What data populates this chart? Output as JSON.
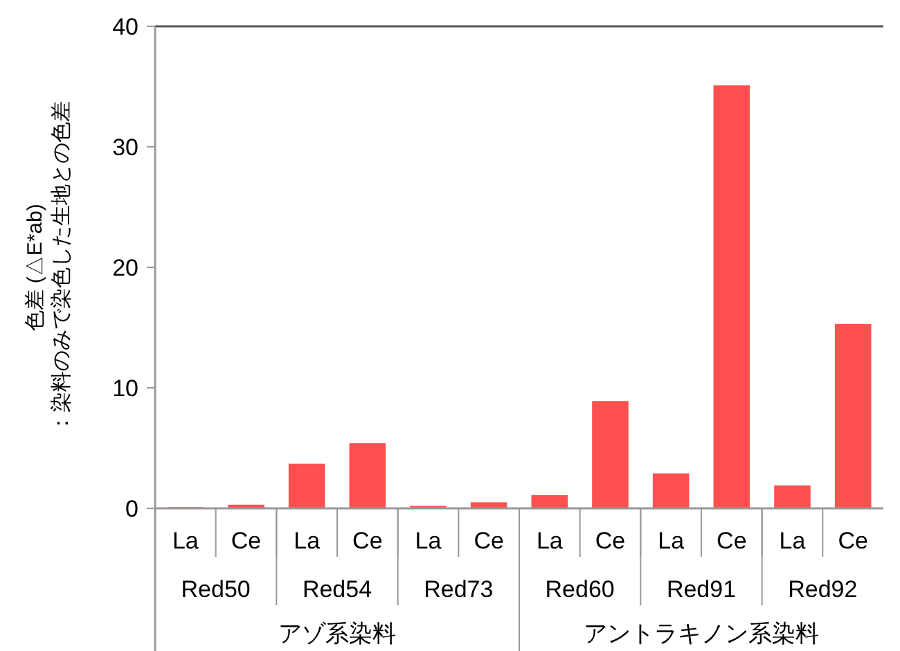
{
  "chart_data": {
    "type": "bar",
    "ylabel": "色差 (△E*ab)\n：染料のみで染色した生地との色差",
    "categories": [
      "La",
      "Ce",
      "La",
      "Ce",
      "La",
      "Ce",
      "La",
      "Ce",
      "La",
      "Ce",
      "La",
      "Ce"
    ],
    "values": [
      0.1,
      0.3,
      3.7,
      5.4,
      0.2,
      0.5,
      1.1,
      8.9,
      2.9,
      35.1,
      1.9,
      15.3
    ],
    "color": "#ff5050",
    "ylim": [
      0,
      40
    ],
    "yticks": [
      0,
      10,
      20,
      30,
      40
    ],
    "grid": false,
    "annotations": [
      "Red50",
      "Red54",
      "Red73",
      "Red60",
      "Red91",
      "Red92",
      "アゾ系染料",
      "アントラキノン系染料"
    ]
  }
}
